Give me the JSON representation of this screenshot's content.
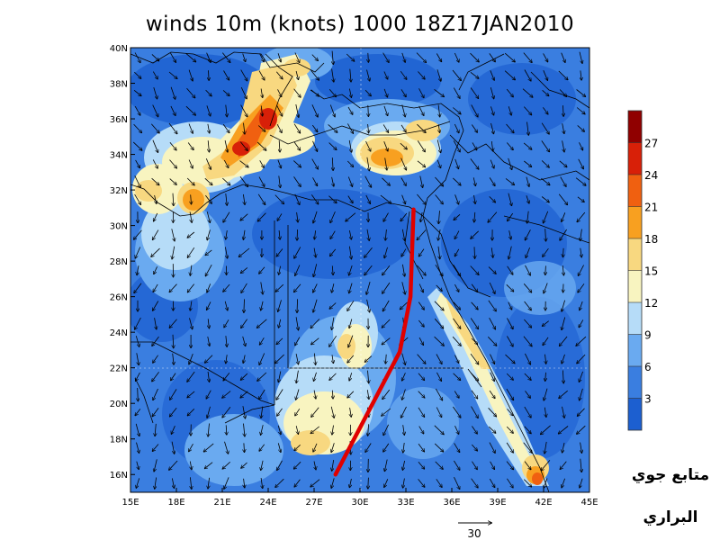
{
  "title": "winds 10m (knots) 1000 18Z17JAN2010",
  "longitude_labels": [
    "15E",
    "18E",
    "21E",
    "24E",
    "27E",
    "30E",
    "33E",
    "36E",
    "39E",
    "42E",
    "45E"
  ],
  "latitude_labels": [
    "16N",
    "18N",
    "20N",
    "22N",
    "24N",
    "26N",
    "28N",
    "30N",
    "32N",
    "34N",
    "36N",
    "38N",
    "40N"
  ],
  "longitude_values": [
    15,
    18,
    21,
    24,
    27,
    30,
    33,
    36,
    39,
    42,
    45
  ],
  "latitude_values": [
    16,
    18,
    20,
    22,
    24,
    26,
    28,
    30,
    32,
    34,
    36,
    38,
    40
  ],
  "extent": {
    "lon_min": 15,
    "lon_max": 45,
    "lat_min": 15,
    "lat_max": 40
  },
  "colorbar": {
    "labels": [
      "3",
      "6",
      "9",
      "12",
      "15",
      "18",
      "21",
      "24",
      "27"
    ],
    "colors": [
      "#1c5fd0",
      "#3a7ee0",
      "#6aaaf0",
      "#b6dcf8",
      "#f8f4c0",
      "#f8d880",
      "#f8a020",
      "#f06010",
      "#d82008",
      "#900000"
    ]
  },
  "vector_reference": {
    "value": "30",
    "unit": "knots"
  },
  "annotation_line": {
    "color": "#e00000",
    "points": [
      [
        28.4,
        16.0
      ],
      [
        32.6,
        22.9
      ],
      [
        33.3,
        26.0
      ],
      [
        33.5,
        30.9
      ]
    ]
  },
  "credit": {
    "line1": "متابع جوي",
    "line2": "البراري"
  },
  "wind_field": {
    "background_level": "6-9 knots",
    "max_level": "27+ knots"
  }
}
